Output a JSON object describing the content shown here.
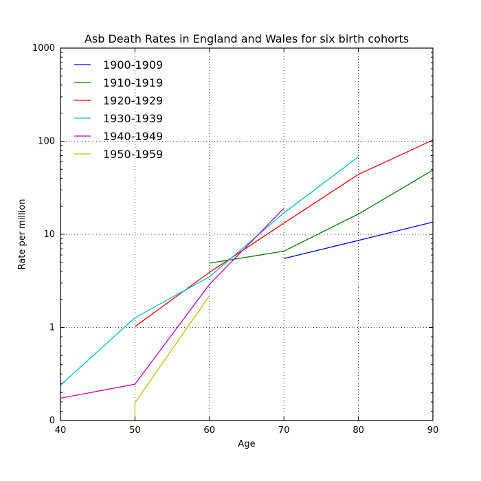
{
  "chart_data": {
    "type": "line",
    "title": "Asb Death Rates in England and Wales for six birth cohorts",
    "xlabel": "Age",
    "ylabel": "Rate per million",
    "xlim": [
      40,
      90
    ],
    "ylim": [
      0,
      1000
    ],
    "yscale": "symlog",
    "grid": true,
    "legend_position": "top-left",
    "xticks": [
      40,
      50,
      60,
      70,
      80,
      90
    ],
    "yticks": [
      {
        "value": 0,
        "label": "0"
      },
      {
        "value": 1,
        "label": "1"
      },
      {
        "value": 10,
        "label": "10"
      },
      {
        "value": 100,
        "label": "100"
      },
      {
        "value": 1000,
        "label": "1000"
      }
    ],
    "series": [
      {
        "name": "1900-1909",
        "color": "#0000ff",
        "x": [
          70,
          80,
          90
        ],
        "y": [
          5.5,
          8.6,
          13.5
        ]
      },
      {
        "name": "1910-1919",
        "color": "#008000",
        "x": [
          60,
          70,
          80,
          90
        ],
        "y": [
          4.9,
          6.6,
          16.5,
          49
        ]
      },
      {
        "name": "1920-1929",
        "color": "#ff0000",
        "x": [
          50,
          60,
          70,
          80,
          90
        ],
        "y": [
          1.02,
          3.9,
          13.2,
          44,
          103
        ]
      },
      {
        "name": "1930-1939",
        "color": "#00bfbf",
        "x": [
          40,
          50,
          60,
          70,
          80
        ],
        "y": [
          0.38,
          1.27,
          3.5,
          17,
          68
        ]
      },
      {
        "name": "1940-1949",
        "color": "#bf00bf",
        "x": [
          40,
          50,
          60,
          70
        ],
        "y": [
          0.24,
          0.39,
          2.9,
          19
        ]
      },
      {
        "name": "1950-1959",
        "color": "#bfbf00",
        "x": [
          50,
          50,
          60
        ],
        "y": [
          0,
          0.19,
          2.2
        ]
      }
    ]
  }
}
